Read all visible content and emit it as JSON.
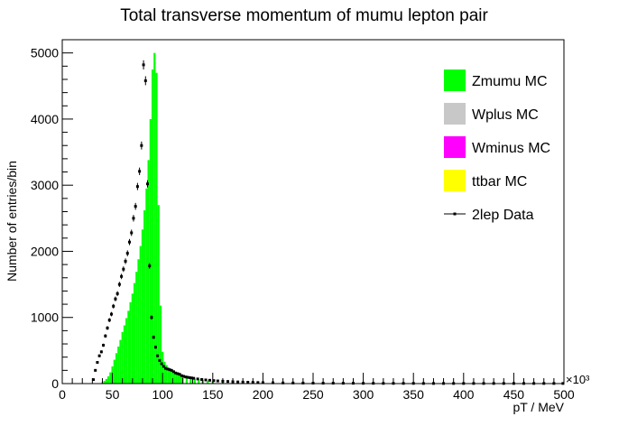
{
  "chart_data": {
    "type": "bar",
    "title": "Total transverse momentum of mumu lepton pair",
    "xlabel": "pT / MeV",
    "ylabel": "Number of entries/bin",
    "x_multiplier": "×10³",
    "xlim": [
      0,
      500
    ],
    "ylim": [
      0,
      5200
    ],
    "x_ticks": [
      0,
      50,
      100,
      150,
      200,
      250,
      300,
      350,
      400,
      450,
      500
    ],
    "y_ticks": [
      0,
      1000,
      2000,
      3000,
      4000,
      5000
    ],
    "bin_width": 2,
    "series": [
      {
        "name": "Zmumu MC",
        "color": "#00ff00",
        "style": "filled-histogram",
        "x": [
          40,
          42,
          44,
          46,
          48,
          50,
          52,
          54,
          56,
          58,
          60,
          62,
          64,
          66,
          68,
          70,
          72,
          74,
          76,
          78,
          80,
          82,
          84,
          86,
          88,
          90,
          92,
          94,
          96,
          98,
          100,
          102,
          104,
          106,
          108,
          110,
          112,
          114,
          116,
          118,
          120,
          124,
          128,
          132,
          136,
          140,
          145,
          150,
          160,
          170,
          180,
          190,
          200,
          220,
          240,
          260,
          280,
          300,
          330,
          360,
          400,
          450,
          498
        ],
        "values": [
          20,
          40,
          70,
          110,
          170,
          260,
          360,
          460,
          560,
          660,
          780,
          880,
          990,
          1100,
          1230,
          1360,
          1520,
          1690,
          1880,
          2080,
          2330,
          2620,
          2950,
          3380,
          4000,
          4750,
          5000,
          4700,
          2700,
          1180,
          480,
          330,
          280,
          240,
          210,
          185,
          165,
          150,
          135,
          120,
          110,
          95,
          85,
          75,
          65,
          55,
          45,
          38,
          30,
          24,
          18,
          14,
          10,
          7,
          5,
          4,
          3,
          2,
          2,
          1,
          1,
          1,
          5
        ]
      },
      {
        "name": "Wplus MC",
        "color": "#c8c8c8",
        "style": "filled-histogram",
        "x": [],
        "values": []
      },
      {
        "name": "Wminus MC",
        "color": "#ff00ff",
        "style": "filled-histogram",
        "x": [],
        "values": []
      },
      {
        "name": "ttbar MC",
        "color": "#ffff00",
        "style": "filled-histogram",
        "x": [],
        "values": []
      },
      {
        "name": "2lep Data",
        "color": "#000000",
        "style": "points-with-errors",
        "x": [
          31,
          33,
          35,
          37,
          39,
          41,
          43,
          45,
          47,
          49,
          51,
          53,
          55,
          57,
          59,
          61,
          63,
          65,
          67,
          69,
          71,
          73,
          75,
          77,
          79,
          81,
          83,
          85,
          87,
          89,
          91,
          93,
          95,
          97,
          99,
          101,
          103,
          105,
          107,
          109,
          111,
          113,
          115,
          117,
          119,
          121,
          123,
          125,
          127,
          129,
          131,
          135,
          139,
          143,
          147,
          151,
          155,
          160,
          165,
          170,
          175,
          180,
          185,
          190,
          195,
          200,
          210,
          220,
          230,
          240,
          250,
          260,
          270,
          280,
          290,
          300,
          310,
          320,
          330,
          340,
          350,
          360,
          370,
          380,
          390,
          400,
          410,
          420,
          430,
          440,
          450,
          460,
          470,
          480,
          490,
          499
        ],
        "values": [
          60,
          200,
          320,
          420,
          480,
          580,
          720,
          840,
          960,
          1050,
          1170,
          1280,
          1360,
          1500,
          1620,
          1730,
          1850,
          1970,
          2140,
          2280,
          2500,
          2680,
          2980,
          3210,
          3600,
          4820,
          4580,
          3020,
          1780,
          1000,
          700,
          550,
          420,
          350,
          300,
          260,
          230,
          220,
          210,
          200,
          180,
          160,
          150,
          140,
          120,
          110,
          100,
          95,
          90,
          85,
          80,
          70,
          62,
          55,
          50,
          45,
          40,
          36,
          32,
          28,
          25,
          22,
          20,
          18,
          16,
          14,
          12,
          10,
          9,
          8,
          7,
          6,
          6,
          5,
          5,
          4,
          4,
          3,
          3,
          3,
          3,
          2,
          2,
          2,
          2,
          2,
          2,
          2,
          2,
          2,
          2,
          2,
          2,
          2,
          2,
          2
        ]
      }
    ],
    "legend": {
      "placement": "top-right",
      "entries": [
        "Zmumu MC",
        "Wplus MC",
        "Wminus MC",
        "ttbar MC",
        "2lep Data"
      ]
    }
  }
}
